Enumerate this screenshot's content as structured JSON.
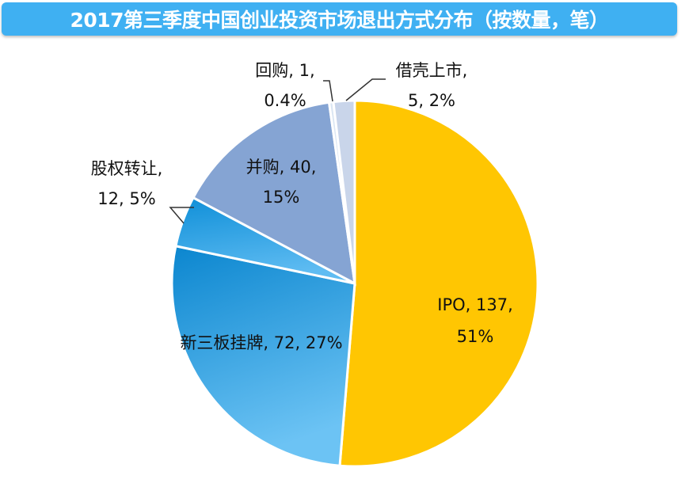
{
  "chart_data": {
    "type": "pie",
    "title": "2017第三季度中国创业投资市场退出方式分布（按数量，笔）",
    "start": "top",
    "direction": "clockwise",
    "slices": [
      {
        "name": "IPO",
        "value": 137,
        "percent": "51%",
        "color": "#ffc602",
        "label_lines": [
          "IPO, 137,",
          "51%"
        ]
      },
      {
        "name": "新三板挂牌",
        "value": 72,
        "percent": "27%",
        "color": "#2a9fe0",
        "color2": "#63bdf2",
        "label_lines": [
          "新三板挂牌, 72, 27%"
        ]
      },
      {
        "name": "股权转让",
        "value": 12,
        "percent": "5%",
        "color": "#1d9be3",
        "color2": "#56b8f0",
        "label_lines": [
          "股权转让,",
          "12, 5%"
        ]
      },
      {
        "name": "并购",
        "value": 40,
        "percent": "15%",
        "color": "#85a4d3",
        "label_lines": [
          "并购, 40,",
          "15%"
        ]
      },
      {
        "name": "回购",
        "value": 1,
        "percent": "0.4%",
        "color": "#dbe6f3",
        "label_lines": [
          "回购, 1,",
          "0.4%"
        ]
      },
      {
        "name": "借壳上市",
        "value": 5,
        "percent": "2%",
        "color": "#c9d5ea",
        "label_lines": [
          "借壳上市,",
          "5, 2%"
        ]
      }
    ],
    "legend": "none"
  }
}
